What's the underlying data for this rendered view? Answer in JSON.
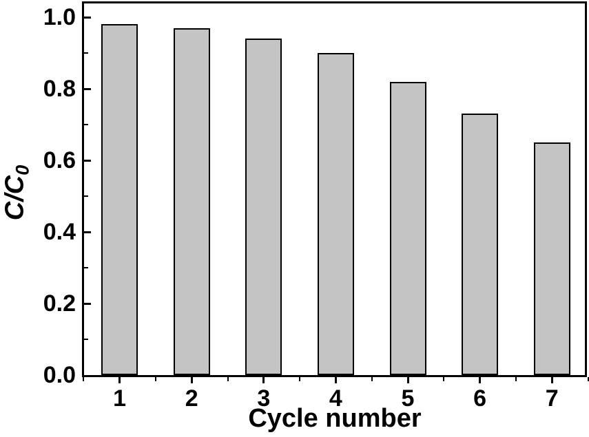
{
  "figure": {
    "background": "#ffffff"
  },
  "chart_data": {
    "type": "bar",
    "title": "",
    "xlabel": "Cycle number",
    "ylabel": "C/C0",
    "ylabel_main": "C/C",
    "ylabel_sub": "0",
    "categories": [
      "1",
      "2",
      "3",
      "4",
      "5",
      "6",
      "7"
    ],
    "values": [
      0.98,
      0.97,
      0.94,
      0.9,
      0.82,
      0.73,
      0.65
    ],
    "xlim": [
      0.49,
      7.49
    ],
    "ylim": [
      0,
      1.04
    ],
    "y_major_ticks": [
      0.0,
      0.2,
      0.4,
      0.6,
      0.8,
      1.0
    ],
    "y_tick_labels": [
      "0.0",
      "0.2",
      "0.4",
      "0.6",
      "0.8",
      "1.0"
    ],
    "y_minor_ticks": [
      0.1,
      0.3,
      0.5,
      0.7,
      0.9
    ],
    "x_minor_ticks": [
      0.5,
      1.5,
      2.5,
      3.5,
      4.5,
      5.5,
      6.5,
      7.5
    ],
    "grid": false,
    "legend": null,
    "bar_color": "#c4c4c4",
    "bar_edge_color": "#000000",
    "axis_color": "#000000",
    "text_color": "#000000"
  }
}
